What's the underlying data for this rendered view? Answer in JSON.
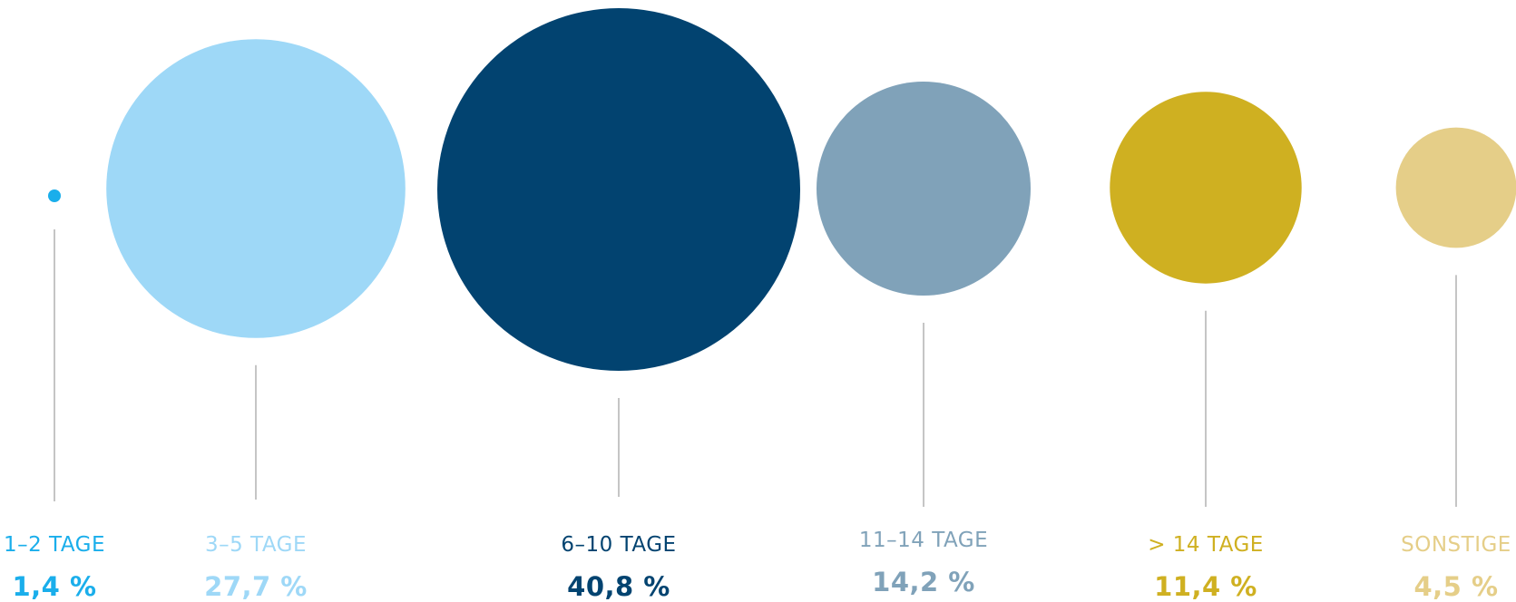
{
  "chart_data": {
    "type": "bubble",
    "title": "",
    "items": [
      {
        "label": "1–2 TAGE",
        "value": 1.4,
        "value_label": "1,4 %",
        "color": "#1AAEEB"
      },
      {
        "label": "3–5 TAGE",
        "value": 27.7,
        "value_label": "27,7 %",
        "color": "#9ED8F7"
      },
      {
        "label": "6–10 TAGE",
        "value": 40.8,
        "value_label": "40,8 %",
        "color": "#024370"
      },
      {
        "label": "11–14 TAGE",
        "value": 14.2,
        "value_label": "14,2 %",
        "color": "#80A2B9"
      },
      {
        "label": "> 14 TAGE",
        "value": 11.4,
        "value_label": "11,4 %",
        "color": "#CFB021"
      },
      {
        "label": "SONSTIGE",
        "value": 4.5,
        "value_label": "4,5 %",
        "color": "#E5CE88"
      }
    ],
    "connector_color": "#A6A6A6",
    "background": "#FFFFFF"
  }
}
